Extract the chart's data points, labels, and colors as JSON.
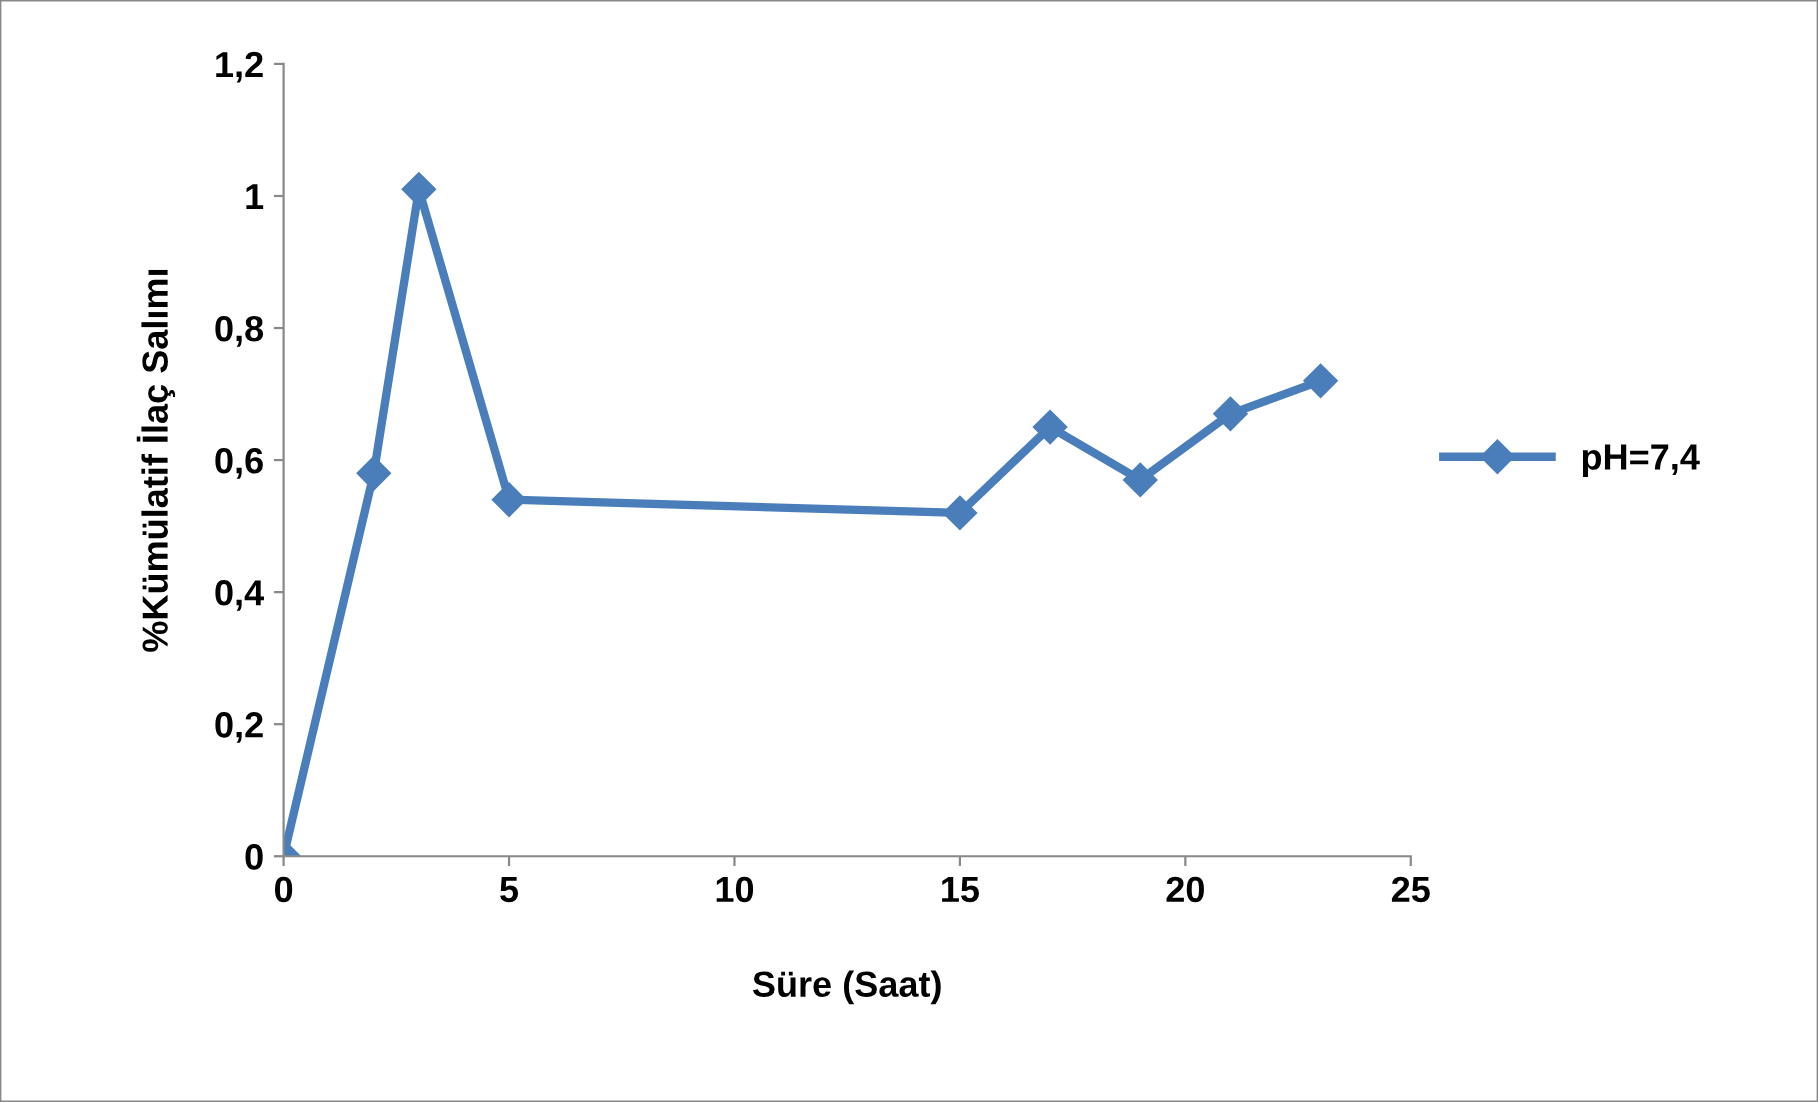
{
  "chart_data": {
    "type": "line",
    "xlabel": "Süre (Saat)",
    "ylabel": "%Kümülatif İlaç Salımı",
    "x": [
      0,
      2,
      3,
      5,
      15,
      17,
      19,
      21,
      23
    ],
    "series": [
      {
        "name": "pH=7,4",
        "color": "#4a7ebb",
        "values": [
          0,
          0.58,
          1.01,
          0.54,
          0.52,
          0.65,
          0.57,
          0.67,
          0.72
        ]
      }
    ],
    "xlim": [
      0,
      25
    ],
    "xticks": [
      0,
      5,
      10,
      15,
      20,
      25
    ],
    "ylim": [
      0,
      1.2
    ],
    "yticks": [
      {
        "value": 0,
        "label": "0"
      },
      {
        "value": 0.2,
        "label": "0,2"
      },
      {
        "value": 0.4,
        "label": "0,4"
      },
      {
        "value": 0.6,
        "label": "0,6"
      },
      {
        "value": 0.8,
        "label": "0,8"
      },
      {
        "value": 1,
        "label": "1"
      },
      {
        "value": 1.2,
        "label": "1,2"
      }
    ],
    "marker": "diamond",
    "line_style": "solid",
    "legend": "right",
    "grid": false
  }
}
